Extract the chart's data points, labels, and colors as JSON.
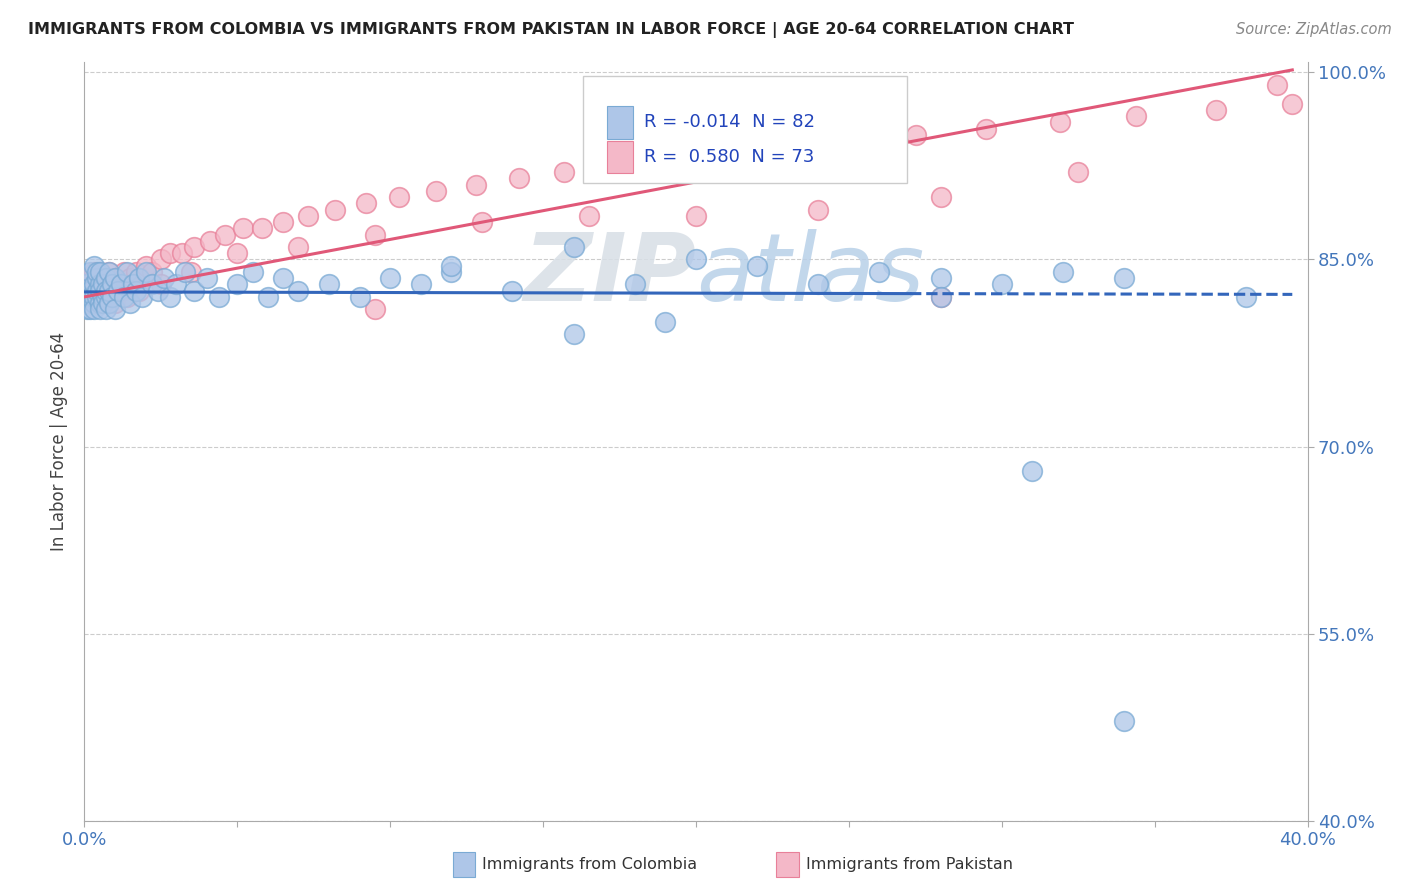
{
  "title": "IMMIGRANTS FROM COLOMBIA VS IMMIGRANTS FROM PAKISTAN IN LABOR FORCE | AGE 20-64 CORRELATION CHART",
  "source": "Source: ZipAtlas.com",
  "ylabel": "In Labor Force | Age 20-64",
  "xlim": [
    0.0,
    0.4
  ],
  "ylim": [
    0.4,
    1.008
  ],
  "xticks": [
    0.0,
    0.05,
    0.1,
    0.15,
    0.2,
    0.25,
    0.3,
    0.35,
    0.4
  ],
  "xtick_labels": [
    "0.0%",
    "",
    "",
    "",
    "",
    "",
    "",
    "",
    "40.0%"
  ],
  "yticks": [
    0.4,
    0.55,
    0.7,
    0.85,
    1.0
  ],
  "ytick_labels": [
    "40.0%",
    "55.0%",
    "70.0%",
    "85.0%",
    "100.0%"
  ],
  "colombia_color": "#aec6e8",
  "colombia_edge": "#7aaad4",
  "pakistan_color": "#f4b8c8",
  "pakistan_edge": "#e88099",
  "colombia_R": -0.014,
  "colombia_N": 82,
  "pakistan_R": 0.58,
  "pakistan_N": 73,
  "legend_label_colombia": "Immigrants from Colombia",
  "legend_label_pakistan": "Immigrants from Pakistan",
  "colombia_x": [
    0.001,
    0.001,
    0.001,
    0.002,
    0.002,
    0.002,
    0.002,
    0.003,
    0.003,
    0.003,
    0.003,
    0.003,
    0.004,
    0.004,
    0.004,
    0.004,
    0.005,
    0.005,
    0.005,
    0.005,
    0.005,
    0.006,
    0.006,
    0.006,
    0.007,
    0.007,
    0.007,
    0.007,
    0.008,
    0.008,
    0.008,
    0.009,
    0.009,
    0.01,
    0.01,
    0.011,
    0.012,
    0.013,
    0.014,
    0.015,
    0.016,
    0.017,
    0.018,
    0.019,
    0.02,
    0.022,
    0.024,
    0.026,
    0.028,
    0.03,
    0.033,
    0.036,
    0.04,
    0.044,
    0.05,
    0.055,
    0.06,
    0.065,
    0.07,
    0.08,
    0.09,
    0.1,
    0.11,
    0.12,
    0.14,
    0.16,
    0.18,
    0.2,
    0.22,
    0.24,
    0.26,
    0.28,
    0.3,
    0.32,
    0.34,
    0.16,
    0.19,
    0.12,
    0.28,
    0.31,
    0.38,
    0.34
  ],
  "colombia_y": [
    0.82,
    0.83,
    0.81,
    0.825,
    0.84,
    0.81,
    0.82,
    0.83,
    0.815,
    0.845,
    0.82,
    0.81,
    0.835,
    0.82,
    0.825,
    0.84,
    0.815,
    0.83,
    0.825,
    0.81,
    0.84,
    0.82,
    0.83,
    0.815,
    0.835,
    0.82,
    0.825,
    0.81,
    0.84,
    0.815,
    0.825,
    0.83,
    0.82,
    0.835,
    0.81,
    0.825,
    0.83,
    0.82,
    0.84,
    0.815,
    0.83,
    0.825,
    0.835,
    0.82,
    0.84,
    0.83,
    0.825,
    0.835,
    0.82,
    0.83,
    0.84,
    0.825,
    0.835,
    0.82,
    0.83,
    0.84,
    0.82,
    0.835,
    0.825,
    0.83,
    0.82,
    0.835,
    0.83,
    0.84,
    0.825,
    0.86,
    0.83,
    0.85,
    0.845,
    0.83,
    0.84,
    0.835,
    0.83,
    0.84,
    0.835,
    0.79,
    0.8,
    0.845,
    0.82,
    0.68,
    0.82,
    0.48
  ],
  "pakistan_x": [
    0.001,
    0.001,
    0.002,
    0.002,
    0.003,
    0.003,
    0.003,
    0.004,
    0.004,
    0.005,
    0.005,
    0.005,
    0.006,
    0.006,
    0.007,
    0.007,
    0.008,
    0.008,
    0.009,
    0.01,
    0.01,
    0.011,
    0.012,
    0.013,
    0.014,
    0.015,
    0.016,
    0.017,
    0.018,
    0.02,
    0.022,
    0.025,
    0.028,
    0.032,
    0.036,
    0.041,
    0.046,
    0.052,
    0.058,
    0.065,
    0.073,
    0.082,
    0.092,
    0.103,
    0.115,
    0.128,
    0.142,
    0.157,
    0.174,
    0.191,
    0.21,
    0.23,
    0.25,
    0.272,
    0.295,
    0.319,
    0.344,
    0.37,
    0.395,
    0.025,
    0.035,
    0.05,
    0.07,
    0.095,
    0.13,
    0.165,
    0.2,
    0.24,
    0.28,
    0.325,
    0.28,
    0.39,
    0.095
  ],
  "pakistan_y": [
    0.815,
    0.825,
    0.82,
    0.83,
    0.835,
    0.82,
    0.84,
    0.825,
    0.815,
    0.83,
    0.82,
    0.84,
    0.825,
    0.815,
    0.835,
    0.82,
    0.83,
    0.84,
    0.82,
    0.835,
    0.815,
    0.83,
    0.825,
    0.84,
    0.82,
    0.835,
    0.83,
    0.84,
    0.825,
    0.845,
    0.84,
    0.85,
    0.855,
    0.855,
    0.86,
    0.865,
    0.87,
    0.875,
    0.875,
    0.88,
    0.885,
    0.89,
    0.895,
    0.9,
    0.905,
    0.91,
    0.915,
    0.92,
    0.925,
    0.93,
    0.935,
    0.94,
    0.945,
    0.95,
    0.955,
    0.96,
    0.965,
    0.97,
    0.975,
    0.83,
    0.84,
    0.855,
    0.86,
    0.87,
    0.88,
    0.885,
    0.885,
    0.89,
    0.9,
    0.92,
    0.82,
    0.99,
    0.81
  ],
  "col_trend_x": [
    0.0,
    0.395
  ],
  "col_trend_y": [
    0.824,
    0.822
  ],
  "pak_trend_x": [
    0.0,
    0.395
  ],
  "pak_trend_y": [
    0.82,
    1.002
  ],
  "watermark_zip": "ZIP",
  "watermark_atlas": "atlas"
}
